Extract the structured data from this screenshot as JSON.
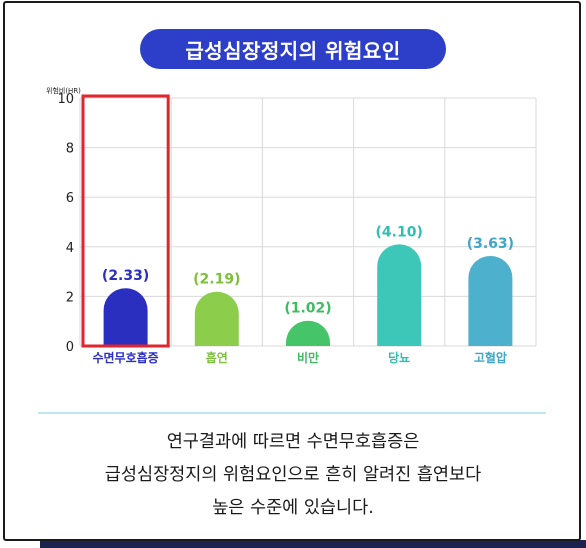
{
  "title": "급성심장정지의 위험요인",
  "chart_data": {
    "type": "bar",
    "ylabel": "위험비(HR)",
    "ylim": [
      0,
      10
    ],
    "yticks": [
      0,
      2,
      4,
      6,
      8,
      10
    ],
    "grid": true,
    "categories": [
      "수면무호흡증",
      "흡연",
      "비만",
      "당뇨",
      "고혈압"
    ],
    "values": [
      2.33,
      2.19,
      1.02,
      4.1,
      3.63
    ],
    "value_labels": [
      "(2.33)",
      "(2.19)",
      "(1.02)",
      "(4.10)",
      "(3.63)"
    ],
    "colors": [
      "#2b2fc0",
      "#8ccd4b",
      "#45c46a",
      "#3cc7b9",
      "#4db0cc"
    ],
    "label_colors": [
      "#2b2fc0",
      "#7dc03c",
      "#3dbd62",
      "#2fbfb1",
      "#3ea6c6"
    ],
    "highlight_category": "수면무호흡증",
    "highlight_color": "#e0262d"
  },
  "caption": [
    "연구결과에 따르면 수면무호흡증은",
    "급성심장정지의 위험요인으로 흔히 알려진 흡연보다",
    "높은 수준에 있습니다."
  ]
}
